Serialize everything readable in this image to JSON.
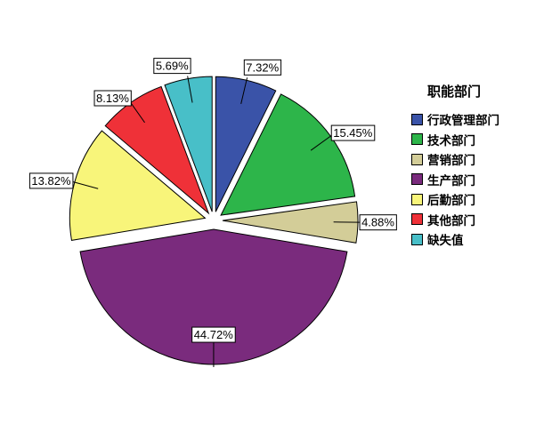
{
  "chart_data": {
    "type": "pie",
    "title": "",
    "legend_title": "职能部门",
    "legend_position": "right",
    "exploded": true,
    "slices": [
      {
        "name": "行政管理部门",
        "value": 7.32,
        "label": "7.32%",
        "color": "#3a53a8"
      },
      {
        "name": "技术部门",
        "value": 15.45,
        "label": "15.45%",
        "color": "#2db54a"
      },
      {
        "name": "营销部门",
        "value": 4.88,
        "label": "4.88%",
        "color": "#d3cd98"
      },
      {
        "name": "生产部门",
        "value": 44.72,
        "label": "44.72%",
        "color": "#7a2b7d"
      },
      {
        "name": "后勤部门",
        "value": 13.82,
        "label": "13.82%",
        "color": "#f8f57a"
      },
      {
        "name": "其他部门",
        "value": 8.13,
        "label": "8.13%",
        "color": "#ef3138"
      },
      {
        "name": "缺失值",
        "value": 5.69,
        "label": "5.69%",
        "color": "#48bfc8"
      }
    ]
  }
}
